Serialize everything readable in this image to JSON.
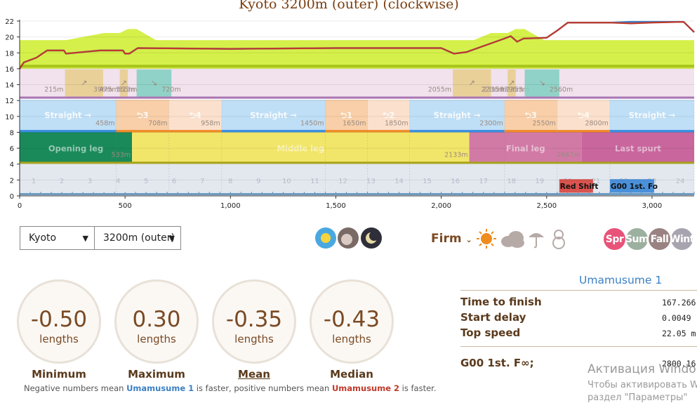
{
  "title": "Kyoto 3200m (outer) (clockwise)",
  "chart_data": {
    "type": "line",
    "course_length": 3200,
    "ylim": [
      0,
      22
    ],
    "y_ticks": [
      0,
      2,
      4,
      6,
      8,
      10,
      12,
      14,
      16,
      18,
      20,
      22
    ],
    "x_ticks": [
      0,
      500,
      1000,
      1500,
      2000,
      2500,
      3000
    ],
    "x_tick_labels": [
      "0",
      "500",
      "1,000",
      "1,500",
      "2,000",
      "2,500",
      "3,000"
    ],
    "slopes": [
      {
        "start": 215,
        "end": 396,
        "dir": "up",
        "label_start": "215m",
        "label_end": "396m",
        "color": "#e8cc8a"
      },
      {
        "start": 475,
        "end": 513,
        "dir": "up",
        "label_start": "475m",
        "label_end": "513m",
        "color": "#e8cc8a"
      },
      {
        "start": 555,
        "end": 720,
        "dir": "down",
        "label_start": "555m",
        "label_end": "720m",
        "color": "#7fcfc0"
      },
      {
        "start": 2055,
        "end": 2236,
        "dir": "up",
        "label_start": "2055m",
        "label_end": "2236m",
        "color": "#e8cc8a"
      },
      {
        "start": 2315,
        "end": 2353,
        "dir": "up",
        "label_start": "2315m",
        "label_end": "2353m",
        "color": "#e8cc8a"
      },
      {
        "start": 2396,
        "end": 2560,
        "dir": "down",
        "label_start": "2396m",
        "label_end": "2560m",
        "color": "#7fcfc0"
      }
    ],
    "sections": [
      {
        "start": 0,
        "end": 458,
        "kind": "straight",
        "label": "Straight →",
        "end_label": "458m"
      },
      {
        "start": 458,
        "end": 708,
        "kind": "corner",
        "label": "⮌3",
        "end_label": "708m"
      },
      {
        "start": 708,
        "end": 958,
        "kind": "corner-light",
        "label": "⮌4",
        "end_label": "958m"
      },
      {
        "start": 958,
        "end": 1450,
        "kind": "straight",
        "label": "Straight →",
        "end_label": "1450m"
      },
      {
        "start": 1450,
        "end": 1650,
        "kind": "corner",
        "label": "⮌1",
        "end_label": "1650m"
      },
      {
        "start": 1650,
        "end": 1850,
        "kind": "corner-light",
        "label": "⮌2",
        "end_label": "1850m"
      },
      {
        "start": 1850,
        "end": 2300,
        "kind": "straight",
        "label": "Straight →",
        "end_label": "2300m"
      },
      {
        "start": 2300,
        "end": 2550,
        "kind": "corner",
        "label": "⮌3",
        "end_label": "2550m"
      },
      {
        "start": 2550,
        "end": 2800,
        "kind": "corner-light",
        "label": "⮌4",
        "end_label": "2800m"
      },
      {
        "start": 2800,
        "end": 3200,
        "kind": "straight",
        "label": "Straight →",
        "end_label": ""
      }
    ],
    "phases": [
      {
        "start": 0,
        "end": 533,
        "label": "Opening leg",
        "end_label": "533m",
        "color": "#1a8a5a"
      },
      {
        "start": 533,
        "end": 2133,
        "label": "Middle leg",
        "end_label": "2133m",
        "color": "#f2e66a"
      },
      {
        "start": 2133,
        "end": 2667,
        "label": "Final leg",
        "end_label": "2667m",
        "color": "#d27aa6"
      },
      {
        "start": 2667,
        "end": 3200,
        "label": "Last spurt",
        "end_label": "",
        "color": "#c9669e"
      }
    ],
    "grid_numbers": [
      "1",
      "2",
      "3",
      "4",
      "5",
      "6",
      "7",
      "8",
      "9",
      "10",
      "11",
      "12",
      "13",
      "14",
      "15",
      "16",
      "17",
      "18",
      "19",
      "20",
      "21",
      "22",
      "23",
      "24"
    ],
    "skill_markers": [
      {
        "start": 2560,
        "end": 2720,
        "label": "Red Shift",
        "color": "#d9534f"
      },
      {
        "start": 2800,
        "end": 3010,
        "label": "G00 1st. Fo",
        "color": "#4a90d9"
      }
    ],
    "elevation": {
      "x": [
        0,
        400,
        475,
        513,
        555,
        720,
        2055,
        2236,
        2315,
        2353,
        2396,
        2560,
        3200
      ],
      "y": [
        18.5,
        20.5,
        20.5,
        21.0,
        21.0,
        18.5,
        18.5,
        20.5,
        20.5,
        21.0,
        21.0,
        18.5,
        18.5
      ]
    },
    "series": [
      {
        "name": "Umamusume 1",
        "color": "#3b7fc4",
        "x": [
          0,
          20,
          80,
          130,
          210,
          220,
          380,
          400,
          490,
          500,
          520,
          560,
          1000,
          1500,
          2000,
          2060,
          2120,
          2300,
          2330,
          2360,
          2390,
          2500,
          2550,
          2600,
          2800,
          2900,
          3000,
          3150,
          3200
        ],
        "y": [
          16.0,
          16.8,
          17.4,
          18.3,
          18.3,
          17.9,
          18.3,
          18.3,
          18.3,
          17.9,
          17.9,
          18.6,
          18.5,
          18.6,
          18.6,
          17.9,
          18.1,
          19.8,
          20.1,
          19.4,
          19.8,
          19.9,
          20.8,
          21.8,
          21.8,
          21.9,
          21.9,
          21.9,
          20.6
        ]
      },
      {
        "name": "Umamusume 2",
        "color": "#c0392b",
        "x": [
          0,
          20,
          80,
          130,
          210,
          220,
          380,
          400,
          490,
          500,
          520,
          560,
          1000,
          1500,
          2000,
          2060,
          2120,
          2300,
          2330,
          2360,
          2390,
          2500,
          2550,
          2600,
          2800,
          2900,
          3000,
          3150,
          3200
        ],
        "y": [
          16.0,
          16.8,
          17.4,
          18.3,
          18.3,
          17.9,
          18.3,
          18.3,
          18.3,
          17.9,
          17.9,
          18.6,
          18.5,
          18.6,
          18.6,
          17.9,
          18.1,
          19.8,
          20.1,
          19.4,
          19.8,
          19.9,
          20.8,
          21.8,
          21.8,
          21.7,
          21.8,
          21.9,
          20.6
        ]
      }
    ]
  },
  "controls": {
    "track": "Kyoto",
    "distance": "3200m (outer)",
    "ground": "Firm",
    "time_of_day_icons": [
      "sun-day-icon",
      "evening-icon",
      "night-moon-icon"
    ],
    "weather_icons": [
      "sunny-icon",
      "cloudy-icon",
      "rainy-icon",
      "snowy-icon"
    ],
    "seasons": [
      {
        "label": "Spr",
        "color": "#e8537a"
      },
      {
        "label": "Sum",
        "color": "#9cb0a0"
      },
      {
        "label": "Fall",
        "color": "#9a8282"
      },
      {
        "label": "Wint",
        "color": "#a7a4b0"
      }
    ]
  },
  "stats": [
    {
      "label": "Minimum",
      "value": "-0.50",
      "unit": "lengths"
    },
    {
      "label": "Maximum",
      "value": "0.30",
      "unit": "lengths"
    },
    {
      "label": "Mean",
      "value": "-0.35",
      "unit": "lengths"
    },
    {
      "label": "Median",
      "value": "-0.43",
      "unit": "lengths"
    }
  ],
  "note": {
    "part1": "Negative numbers mean ",
    "uma1": "Umamusume 1",
    "part2": " is faster, positive numbers mean ",
    "uma2": "Umamusume 2",
    "part3": " is faster."
  },
  "results": {
    "header": "Umamusume 1",
    "rows": [
      {
        "label": "Time to finish",
        "value": "167.266"
      },
      {
        "label": "Start delay",
        "value": "0.0049"
      },
      {
        "label": "Top speed",
        "value": "22.05 m"
      }
    ],
    "skill_row": {
      "label": "G00 1st. F∞;",
      "value": "2800.16"
    }
  },
  "watermark": {
    "line1": "Активация Windo",
    "line2": "Чтобы активировать W",
    "line3": "раздел \"Параметры\""
  }
}
